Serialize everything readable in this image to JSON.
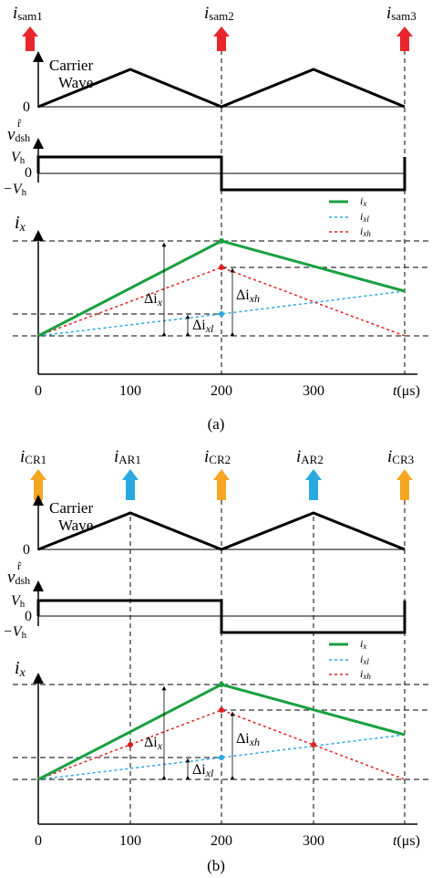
{
  "panel_a": {
    "sample_labels": [
      {
        "main": "i",
        "sub": "sam1"
      },
      {
        "main": "i",
        "sub": "sam2"
      },
      {
        "main": "i",
        "sub": "sam3"
      }
    ],
    "carrier_label_1": "Carrier",
    "carrier_label_2": "Wave",
    "zero": "0",
    "v_label_main": "v",
    "v_label_sup": "r̂",
    "v_label_sub": "dsh",
    "vh_main": "V",
    "vh_sub": "h",
    "neg_vh_main": "−V",
    "neg_vh_sub": "h",
    "ix_main": "i",
    "ix_sub": "x",
    "legend": [
      {
        "main": "i",
        "sub": "x",
        "color": "#1aa040",
        "dash": "solid"
      },
      {
        "main": "i",
        "sub": "xl",
        "color": "#29a9e0",
        "dash": "dotted"
      },
      {
        "main": "i",
        "sub": "xh",
        "color": "#e02020",
        "dash": "dotted"
      }
    ],
    "delta_ix": {
      "pre": "Δi",
      "sub": "x"
    },
    "delta_ixh": {
      "pre": "Δi",
      "sub": "xh"
    },
    "delta_ixl": {
      "pre": "Δi",
      "sub": "xl"
    },
    "x_ticks": [
      "0",
      "100",
      "200",
      "300"
    ],
    "t_label": "t",
    "unit": "(μs)",
    "caption": "(a)"
  },
  "panel_b": {
    "sample_labels": [
      {
        "main": "i",
        "sub": "CR1",
        "color": "#f5a623"
      },
      {
        "main": "i",
        "sub": "AR1",
        "color": "#29a9e0"
      },
      {
        "main": "i",
        "sub": "CR2",
        "color": "#f5a623"
      },
      {
        "main": "i",
        "sub": "AR2",
        "color": "#29a9e0"
      },
      {
        "main": "i",
        "sub": "CR3",
        "color": "#f5a623"
      }
    ],
    "carrier_label_1": "Carrier",
    "carrier_label_2": "Wave",
    "zero": "0",
    "v_label_main": "v",
    "v_label_sup": "r̂",
    "v_label_sub": "dsh",
    "vh_main": "V",
    "vh_sub": "h",
    "neg_vh_main": "−V",
    "neg_vh_sub": "h",
    "ix_main": "i",
    "ix_sub": "x",
    "legend": [
      {
        "main": "i",
        "sub": "x",
        "color": "#1aa040",
        "dash": "solid"
      },
      {
        "main": "i",
        "sub": "xl",
        "color": "#29a9e0",
        "dash": "dotted"
      },
      {
        "main": "i",
        "sub": "xh",
        "color": "#e02020",
        "dash": "dotted"
      }
    ],
    "delta_ix": {
      "pre": "Δi",
      "sub": "x"
    },
    "delta_ixh": {
      "pre": "Δi",
      "sub": "xh"
    },
    "delta_ixl": {
      "pre": "Δi",
      "sub": "xl"
    },
    "x_ticks": [
      "0",
      "100",
      "200",
      "300"
    ],
    "t_label": "t",
    "unit": "(μs)",
    "caption": "(b)"
  },
  "colors": {
    "red_arrow": "#e8262c",
    "orange_arrow": "#f5a623",
    "blue_arrow": "#29a9e0",
    "green": "#1aa040",
    "blue": "#29a9e0",
    "red": "#e02020"
  }
}
